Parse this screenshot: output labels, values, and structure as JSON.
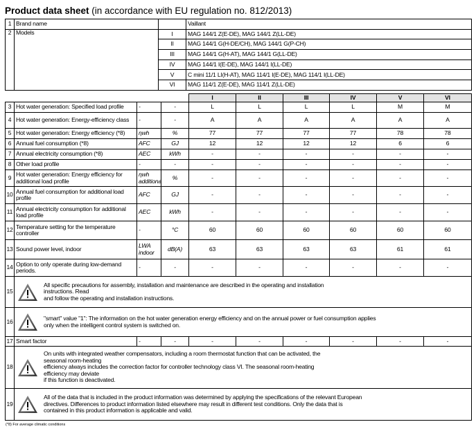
{
  "title": {
    "bold": "Product data sheet",
    "rest": "(in accordance with EU regulation no. 812/2013)"
  },
  "brand": {
    "num": "1",
    "label": "Brand name",
    "value": "Vaillant"
  },
  "models": {
    "num": "2",
    "label": "Models",
    "items": [
      {
        "roman": "I",
        "value": "MAG 144/1 Z(E-DE), MAG 144/1 Z(LL-DE)"
      },
      {
        "roman": "II",
        "value": "MAG 144/1 G(H-DE/CH), MAG 144/1 G(P-CH)"
      },
      {
        "roman": "III",
        "value": "MAG 144/1 G(H-AT), MAG 144/1 G(LL-DE)"
      },
      {
        "roman": "IV",
        "value": "MAG 144/1 I(E-DE), MAG 144/1 I(LL-DE)"
      },
      {
        "roman": "V",
        "value": "C mini 11/1 LI(H-AT), MAG 114/1 I(E-DE), MAG 114/1 I(LL-DE)"
      },
      {
        "roman": "VI",
        "value": "MAG 114/1 Z(E-DE), MAG 114/1 Z(LL-DE)"
      }
    ]
  },
  "columns": [
    "I",
    "II",
    "III",
    "IV",
    "V",
    "VI"
  ],
  "rows": [
    {
      "num": "3",
      "label": "Hot water generation: Specified load profile",
      "sym": "-",
      "unit": "-",
      "values": [
        "L",
        "L",
        "L",
        "L",
        "M",
        "M"
      ]
    },
    {
      "num": "4",
      "label": "Hot water generation: Energy-efficiency class",
      "sym": "-",
      "unit": "-",
      "values": [
        "A",
        "A",
        "A",
        "A",
        "A",
        "A"
      ]
    },
    {
      "num": "5",
      "label": "Hot water generation: Energy efficiency (*8)",
      "sym": "ηwh",
      "unit": "%",
      "values": [
        "77",
        "77",
        "77",
        "77",
        "78",
        "78"
      ]
    },
    {
      "num": "6",
      "label": "Annual fuel consumption (*8)",
      "sym": "AFC",
      "unit": "GJ",
      "values": [
        "12",
        "12",
        "12",
        "12",
        "6",
        "6"
      ]
    },
    {
      "num": "7",
      "label": "Annual electricity consumption (*8)",
      "sym": "AEC",
      "unit": "kWh",
      "values": [
        "-",
        "-",
        "-",
        "-",
        "-",
        "-"
      ]
    },
    {
      "num": "8",
      "label": "Other load profile",
      "sym": "-",
      "unit": "-",
      "values": [
        "-",
        "-",
        "-",
        "-",
        "-",
        "-"
      ]
    },
    {
      "num": "9",
      "label": "Hot water generation: Energy efficiency for additional load profile",
      "sym": "ηwh additional",
      "unit": "%",
      "values": [
        "-",
        "-",
        "-",
        "-",
        "-",
        "-"
      ]
    },
    {
      "num": "10",
      "label": "Annual fuel consumption for additional load profile",
      "sym": "AFC",
      "unit": "GJ",
      "values": [
        "-",
        "-",
        "-",
        "-",
        "-",
        "-"
      ]
    },
    {
      "num": "11",
      "label": "Annual electricity consumption for additional load profile",
      "sym": "AEC",
      "unit": "kWh",
      "values": [
        "-",
        "-",
        "-",
        "-",
        "-",
        "-"
      ]
    },
    {
      "num": "12",
      "label": "Temperature setting for the temperature controller",
      "sym": "-",
      "unit": "°C",
      "values": [
        "60",
        "60",
        "60",
        "60",
        "60",
        "60"
      ]
    },
    {
      "num": "13",
      "label": "Sound power level, indoor",
      "sym": "LWA indoor",
      "unit": "dB(A)",
      "values": [
        "63",
        "63",
        "63",
        "63",
        "61",
        "61"
      ]
    },
    {
      "num": "14",
      "label": "Option to only operate during low-demand periods.",
      "sym": "-",
      "unit": "-",
      "values": [
        "-",
        "-",
        "-",
        "-",
        "-",
        "-"
      ]
    }
  ],
  "notes": {
    "n15": {
      "num": "15",
      "lines": [
        "All specific precautions for assembly, installation and maintenance are described in the operating and installation",
        "instructions. Read",
        "and follow the operating and installation instructions."
      ]
    },
    "n16": {
      "num": "16",
      "lines": [
        "\"smart\" value \"1\": The information on the hot water generation energy efficiency and on the annual power or fuel consumption applies",
        "only when the intelligent control system is switched on."
      ]
    },
    "n18": {
      "num": "18",
      "lines": [
        "On units with integrated weather compensators, including a room thermostat function that can be activated, the",
        "seasonal room-heating",
        "efficiency always includes the correction factor for controller technology class VI. The seasonal room-heating",
        "efficiency may deviate",
        "if this function is deactivated."
      ]
    },
    "n19": {
      "num": "19",
      "lines": [
        "All of the data that is included in the product information was determined by applying the specifications of the relevant European",
        "directives. Differences to product information listed elsewhere may result in different test conditions. Only the data that is",
        "contained in this product information is applicable and valid."
      ]
    }
  },
  "smart": {
    "num": "17",
    "label": "Smart factor",
    "sym": "-",
    "unit": "-",
    "values": [
      "-",
      "-",
      "-",
      "-",
      "-",
      "-"
    ]
  },
  "footnote": "(*8)  For average climatic conditions",
  "icons": {
    "warning": "warning-triangle-icon"
  }
}
